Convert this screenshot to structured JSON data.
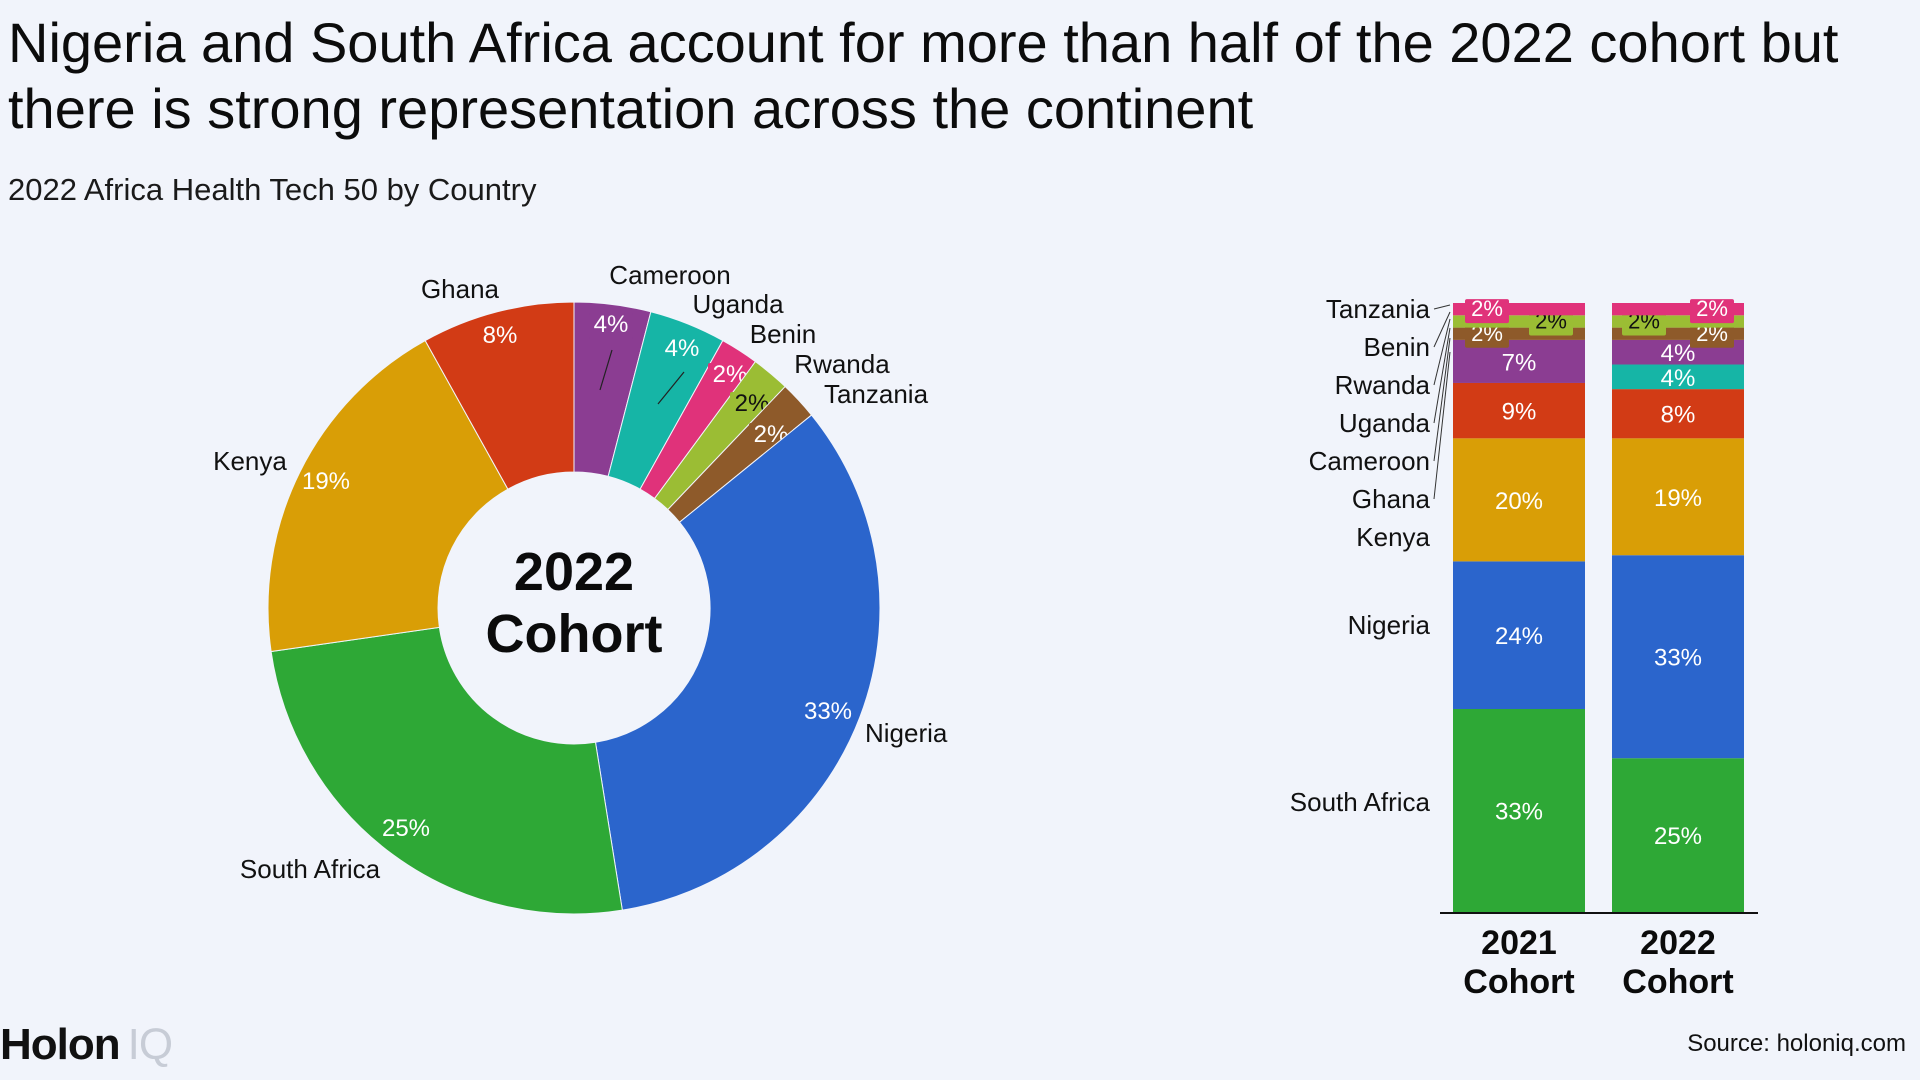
{
  "title": "Nigeria and South Africa account for more than half of the 2022 cohort but there is strong representation across the continent",
  "subtitle": "2022 Africa Health Tech 50 by Country",
  "brand": {
    "name": "Holon",
    "suffix": "IQ"
  },
  "source": "Source: holoniq.com",
  "chart_data": [
    {
      "type": "pie",
      "variant": "donut",
      "center_label": [
        "2022",
        "Cohort"
      ],
      "categories": [
        "Nigeria",
        "South Africa",
        "Kenya",
        "Ghana",
        "Cameroon",
        "Uganda",
        "Benin",
        "Rwanda",
        "Tanzania"
      ],
      "value_labels": [
        "33%",
        "25%",
        "19%",
        "8%",
        "4%",
        "4%",
        "2%",
        "2%",
        "2%"
      ],
      "values": [
        33,
        25,
        19,
        8,
        4,
        4,
        2,
        2,
        2
      ],
      "colors": [
        "#2b65cc",
        "#2ea836",
        "#d99e06",
        "#d23b15",
        "#8b3d92",
        "#16b5a6",
        "#e0327a",
        "#9bbd34",
        "#8e5a2a"
      ]
    },
    {
      "type": "bar",
      "variant": "stacked-100",
      "categories": [
        "2021 Cohort",
        "2022 Cohort"
      ],
      "legend_labels": [
        "Tanzania",
        "Benin",
        "Rwanda",
        "Uganda",
        "Cameroon",
        "Ghana",
        "Kenya",
        "Nigeria",
        "South Africa"
      ],
      "series": [
        {
          "name": "South Africa",
          "values": [
            33,
            25
          ],
          "labels": [
            "33%",
            "25%"
          ],
          "color": "#2ea836"
        },
        {
          "name": "Nigeria",
          "values": [
            24,
            33
          ],
          "labels": [
            "24%",
            "33%"
          ],
          "color": "#2b65cc"
        },
        {
          "name": "Kenya",
          "values": [
            20,
            19
          ],
          "labels": [
            "20%",
            "19%"
          ],
          "color": "#d99e06"
        },
        {
          "name": "Ghana",
          "values": [
            9,
            8
          ],
          "labels": [
            "9%",
            "8%"
          ],
          "color": "#d23b15"
        },
        {
          "name": "Uganda",
          "values": [
            0,
            4
          ],
          "labels": [
            "",
            "4%"
          ],
          "color": "#16b5a6"
        },
        {
          "name": "Cameroon",
          "values": [
            7,
            4
          ],
          "labels": [
            "7%",
            "4%"
          ],
          "color": "#8b3d92"
        },
        {
          "name": "Benin",
          "values": [
            2,
            2
          ],
          "labels": [
            "2%",
            "2%"
          ],
          "color": "#8e5a2a"
        },
        {
          "name": "Rwanda",
          "values": [
            2,
            2
          ],
          "labels": [
            "2%",
            "2%"
          ],
          "color": "#9bbd34"
        },
        {
          "name": "Tanzania",
          "values": [
            2,
            2
          ],
          "labels": [
            "2%",
            "2%"
          ],
          "color": "#e0327a"
        }
      ]
    }
  ]
}
